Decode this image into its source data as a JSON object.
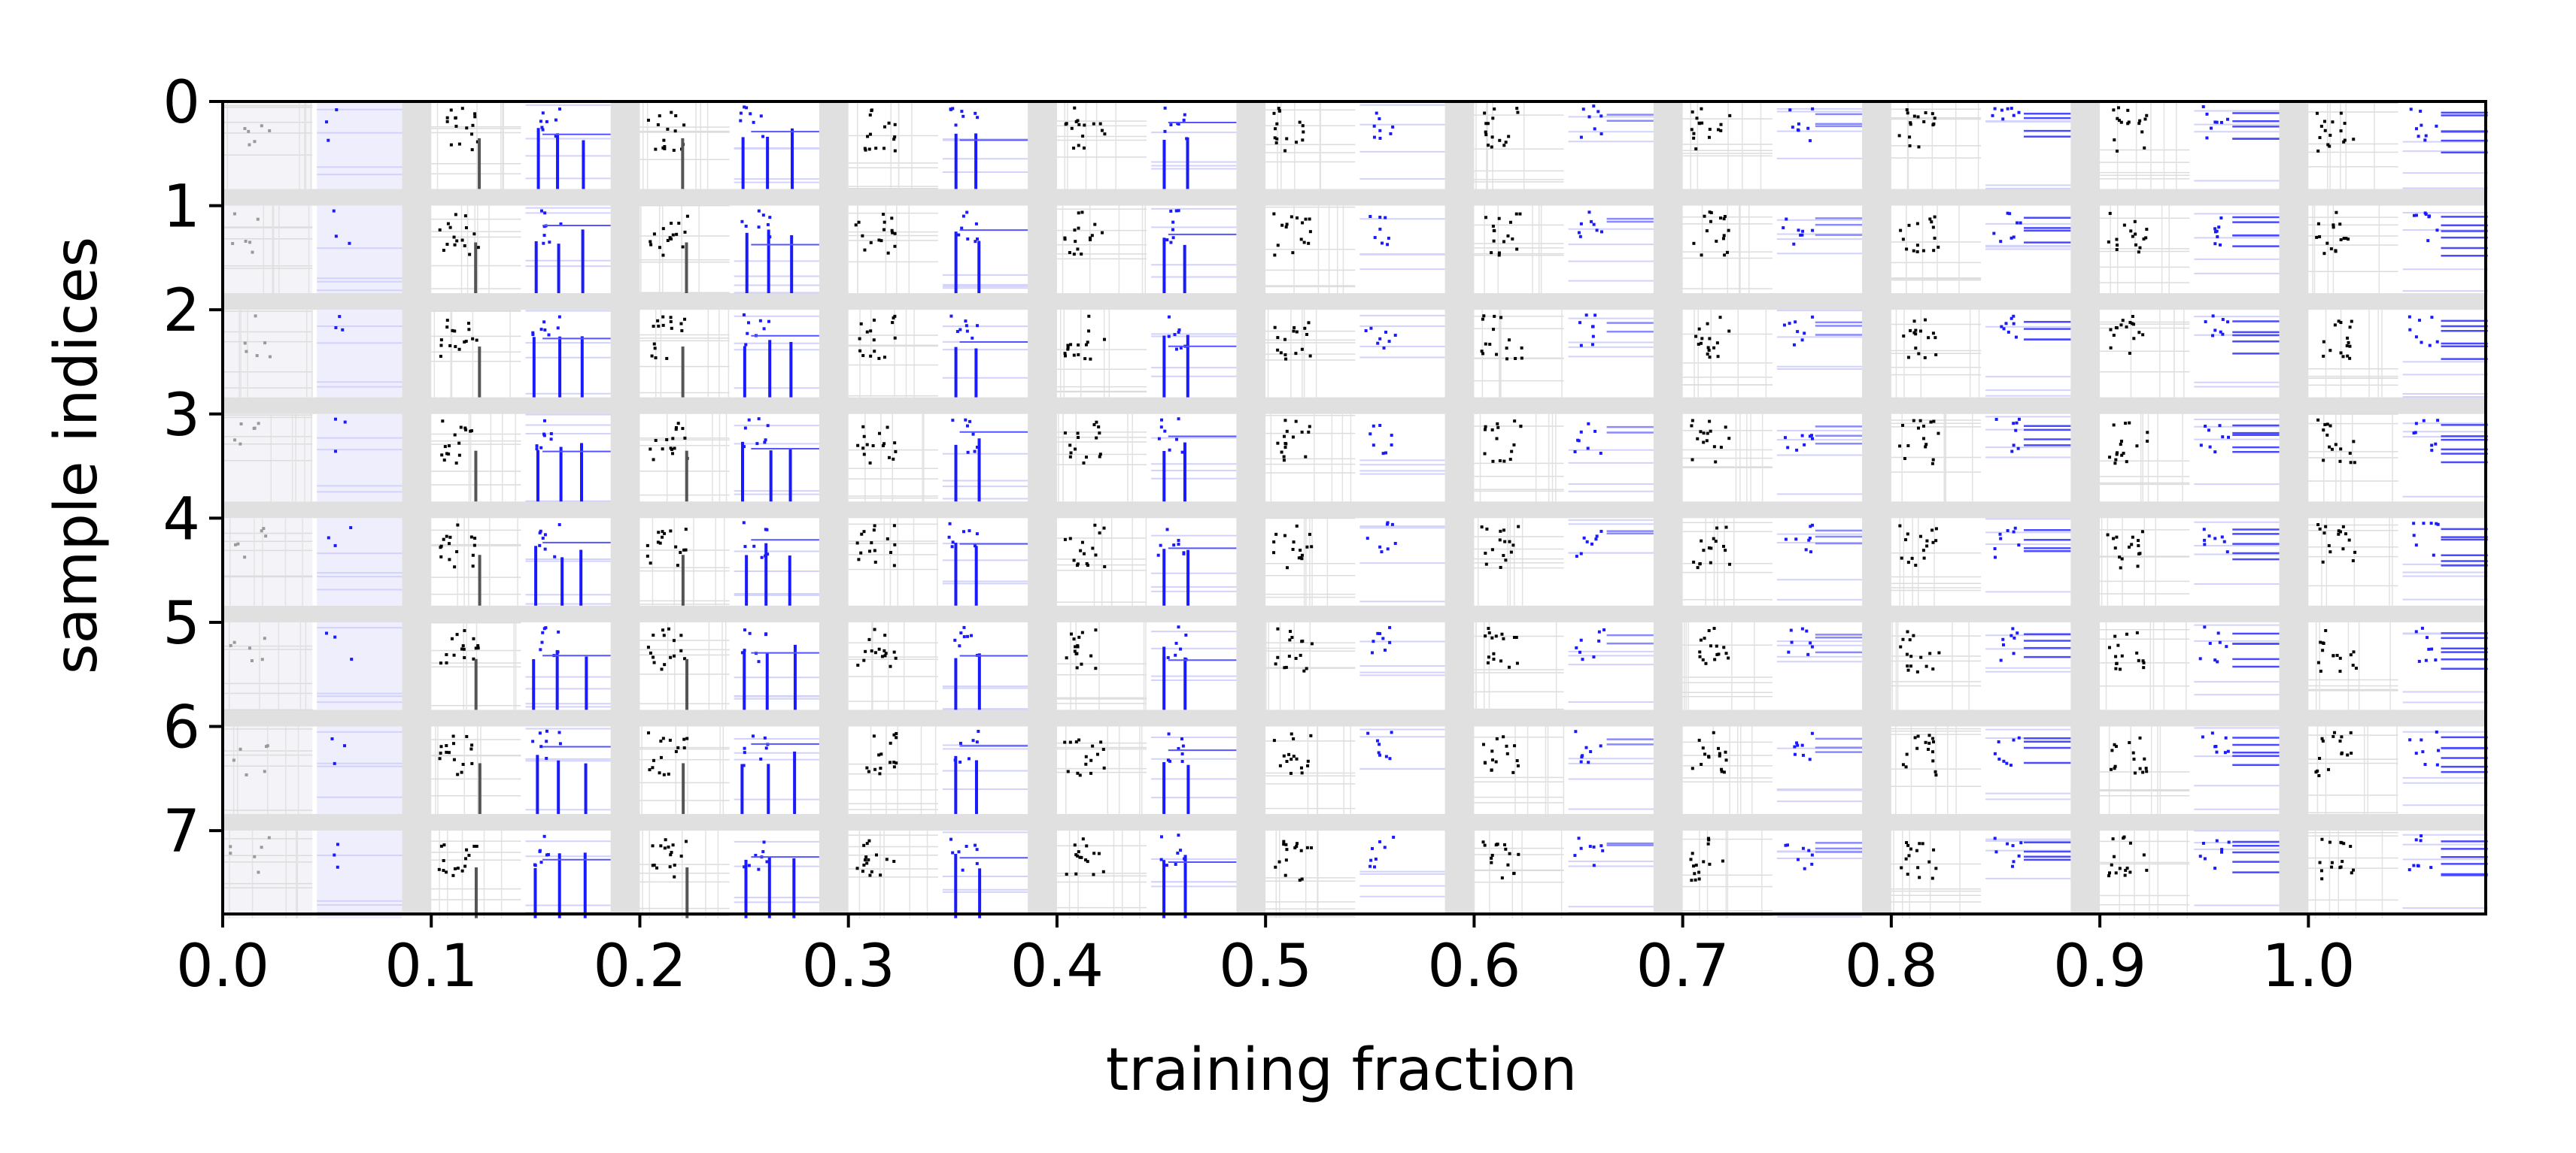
{
  "chart_data": {
    "type": "heatmap",
    "title": "",
    "xlabel": "training fraction",
    "ylabel": "sample indices",
    "x_ticks": [
      "0.0",
      "0.1",
      "0.2",
      "0.3",
      "0.4",
      "0.5",
      "0.6",
      "0.7",
      "0.8",
      "0.9",
      "1.0"
    ],
    "y_ticks": [
      "0",
      "1",
      "2",
      "3",
      "4",
      "5",
      "6",
      "7"
    ],
    "xlim": [
      0.0,
      1.085
    ],
    "ylim": [
      0,
      7.8
    ],
    "grid": false,
    "columns": [
      0.0,
      0.1,
      0.2,
      0.3,
      0.4,
      0.5,
      0.6,
      0.7,
      0.8,
      0.9,
      1.0
    ],
    "rows": [
      0,
      1,
      2,
      3,
      4,
      5,
      6,
      7
    ],
    "panels_per_cell": [
      "grayscale-matrix",
      "blue-matrix"
    ],
    "colors": {
      "gap": "#e0e0e0",
      "cell_background": "#ffffff",
      "gray_mark": "#000000",
      "blue_mark": "#1a1aff",
      "axis": "#000000"
    }
  }
}
